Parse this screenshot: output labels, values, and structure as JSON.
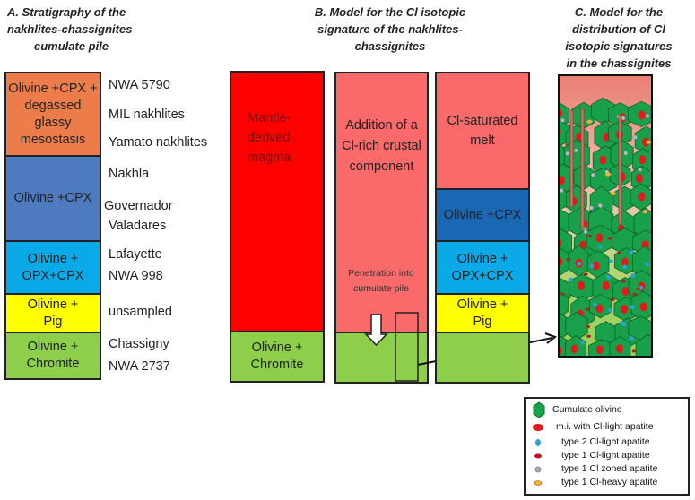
{
  "panel_a": {
    "title": [
      "A. Stratigraphy of the",
      "nakhlites-chassignites",
      "cumulate pile"
    ],
    "layers": [
      {
        "label": "Olivine +CPX + degassed glassy mesostasis",
        "color": "#ec7d4a"
      },
      {
        "label": "Olivine +CPX",
        "color": "#4e7bbf"
      },
      {
        "label": "Olivine + OPX+CPX",
        "color": "#0aaae8"
      },
      {
        "label": "Olivine + Pig",
        "color": "#ffff00"
      },
      {
        "label": "Olivine + Chromite",
        "color": "#8dcf4a"
      }
    ],
    "samples": [
      "NWA 5790",
      "MIL nakhlites",
      "Yamato nakhlites",
      "Nakhla",
      "Governador",
      "Valadares",
      "Lafayette",
      "NWA 998",
      "unsampled",
      "Chassigny",
      "NWA 2737"
    ]
  },
  "panel_b": {
    "title": [
      "B. Model for the Cl isotopic",
      "signature of the nakhlites-",
      "chassignites"
    ],
    "col1": {
      "top": "Mantle-derived magma",
      "bottom": "Olivine + Chromite"
    },
    "col2": {
      "top": "Addition of a Cl-rich crustal component",
      "note": "Penetration into cumulate pile"
    },
    "col3": {
      "top": "Cl-saturated melt",
      "layers": [
        "Olivine +CPX",
        "Olivine + OPX+CPX",
        "Olivine + Pig"
      ]
    },
    "colors": {
      "magma": "#ff0000",
      "melt": "#fb6a6a",
      "green": "#8dcf4a",
      "darkblue": "#1a68b4"
    }
  },
  "panel_c": {
    "title": [
      "C. Model for the",
      "distribution of Cl",
      "isotopic signatures",
      "in the chassignites"
    ]
  },
  "legend": {
    "items": [
      "Cumulate olivine",
      "m.i. with Cl-light apatite",
      "type 2 Cl-light apatite",
      "type 1 Cl-light apatite",
      "type 1 Cl zoned apatite",
      "type 1 Cl-heavy apatite"
    ]
  }
}
